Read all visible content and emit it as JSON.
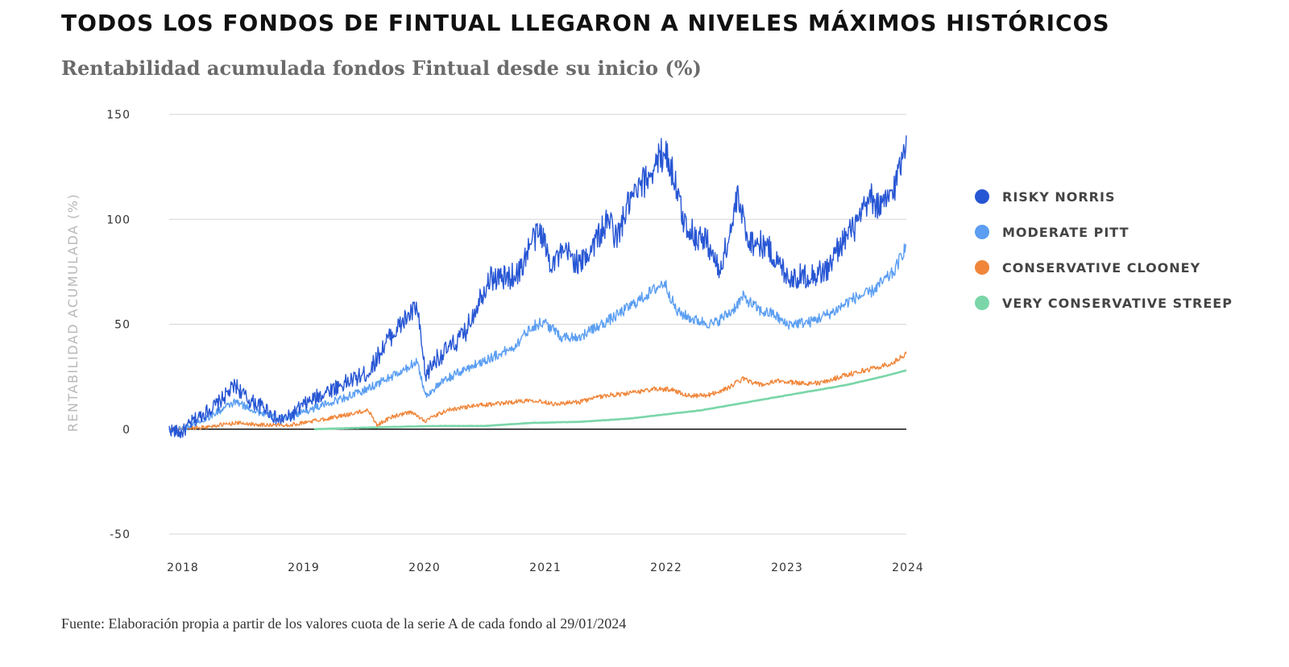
{
  "title": "TODOS LOS FONDOS DE FINTUAL LLEGARON A NIVELES MÁXIMOS HISTÓRICOS",
  "subtitle": "Rentabilidad acumulada fondos Fintual desde su inicio (%)",
  "source": "Fuente: Elaboración propia a partir de los valores cuota de la serie A de cada fondo al 29/01/2024",
  "chart_data": {
    "type": "line",
    "ylabel": "RENTABILIDAD ACUMULADA (%)",
    "xlabel": "",
    "ylim": [
      -50,
      150
    ],
    "xlim": [
      2018.0,
      2024.1
    ],
    "yticks": [
      150,
      100,
      50,
      0,
      -50
    ],
    "xticks": [
      {
        "label": "2018",
        "value": 2018.0
      },
      {
        "label": "2019",
        "value": 2019.0
      },
      {
        "label": "2020",
        "value": 2020.0
      },
      {
        "label": "2021",
        "value": 2021.0
      },
      {
        "label": "2022",
        "value": 2022.0
      },
      {
        "label": "2023",
        "value": 2023.0
      },
      {
        "label": "2024",
        "value": 2024.0
      }
    ],
    "legend_position": "right",
    "series": [
      {
        "name": "RISKY NORRIS",
        "color": "#2756d4",
        "points": [
          [
            2018.0,
            0
          ],
          [
            2018.1,
            -2
          ],
          [
            2018.2,
            4
          ],
          [
            2018.4,
            12
          ],
          [
            2018.55,
            21
          ],
          [
            2018.65,
            14
          ],
          [
            2018.8,
            10
          ],
          [
            2018.9,
            4
          ],
          [
            2019.0,
            6
          ],
          [
            2019.1,
            11
          ],
          [
            2019.3,
            18
          ],
          [
            2019.5,
            23
          ],
          [
            2019.65,
            27
          ],
          [
            2019.8,
            42
          ],
          [
            2019.95,
            52
          ],
          [
            2020.05,
            58
          ],
          [
            2020.12,
            25
          ],
          [
            2020.2,
            33
          ],
          [
            2020.35,
            40
          ],
          [
            2020.45,
            46
          ],
          [
            2020.55,
            60
          ],
          [
            2020.65,
            72
          ],
          [
            2020.8,
            72
          ],
          [
            2020.9,
            75
          ],
          [
            2021.0,
            90
          ],
          [
            2021.08,
            94
          ],
          [
            2021.15,
            80
          ],
          [
            2021.3,
            84
          ],
          [
            2021.4,
            78
          ],
          [
            2021.55,
            92
          ],
          [
            2021.65,
            100
          ],
          [
            2021.7,
            90
          ],
          [
            2021.8,
            107
          ],
          [
            2021.9,
            115
          ],
          [
            2022.0,
            124
          ],
          [
            2022.1,
            133
          ],
          [
            2022.18,
            120
          ],
          [
            2022.25,
            100
          ],
          [
            2022.35,
            92
          ],
          [
            2022.45,
            90
          ],
          [
            2022.55,
            75
          ],
          [
            2022.65,
            95
          ],
          [
            2022.7,
            110
          ],
          [
            2022.8,
            90
          ],
          [
            2022.95,
            87
          ],
          [
            2023.05,
            78
          ],
          [
            2023.15,
            72
          ],
          [
            2023.35,
            74
          ],
          [
            2023.45,
            76
          ],
          [
            2023.55,
            88
          ],
          [
            2023.7,
            98
          ],
          [
            2023.8,
            110
          ],
          [
            2023.9,
            105
          ],
          [
            2024.0,
            115
          ],
          [
            2024.05,
            126
          ],
          [
            2024.1,
            140
          ]
        ]
      },
      {
        "name": "MODERATE PITT",
        "color": "#5b9ef2",
        "points": [
          [
            2018.0,
            0
          ],
          [
            2018.1,
            0
          ],
          [
            2018.3,
            5
          ],
          [
            2018.55,
            13
          ],
          [
            2018.7,
            9
          ],
          [
            2018.9,
            5
          ],
          [
            2019.0,
            6
          ],
          [
            2019.3,
            12
          ],
          [
            2019.6,
            18
          ],
          [
            2019.8,
            24
          ],
          [
            2019.95,
            28
          ],
          [
            2020.05,
            33
          ],
          [
            2020.12,
            16
          ],
          [
            2020.3,
            24
          ],
          [
            2020.5,
            30
          ],
          [
            2020.7,
            35
          ],
          [
            2020.85,
            39
          ],
          [
            2021.0,
            49
          ],
          [
            2021.1,
            51
          ],
          [
            2021.25,
            44
          ],
          [
            2021.4,
            44
          ],
          [
            2021.55,
            49
          ],
          [
            2021.7,
            54
          ],
          [
            2021.85,
            60
          ],
          [
            2022.0,
            66
          ],
          [
            2022.1,
            70
          ],
          [
            2022.2,
            56
          ],
          [
            2022.35,
            52
          ],
          [
            2022.5,
            50
          ],
          [
            2022.65,
            56
          ],
          [
            2022.75,
            63
          ],
          [
            2022.9,
            56
          ],
          [
            2023.0,
            55
          ],
          [
            2023.1,
            50
          ],
          [
            2023.3,
            51
          ],
          [
            2023.5,
            56
          ],
          [
            2023.65,
            62
          ],
          [
            2023.8,
            65
          ],
          [
            2023.9,
            70
          ],
          [
            2024.0,
            75
          ],
          [
            2024.1,
            88
          ]
        ]
      },
      {
        "name": "CONSERVATIVE CLOONEY",
        "color": "#f0863a",
        "points": [
          [
            2018.0,
            0
          ],
          [
            2018.3,
            1
          ],
          [
            2018.55,
            3
          ],
          [
            2018.8,
            2
          ],
          [
            2019.0,
            2
          ],
          [
            2019.2,
            4
          ],
          [
            2019.4,
            6
          ],
          [
            2019.65,
            9
          ],
          [
            2019.72,
            2
          ],
          [
            2019.85,
            6
          ],
          [
            2020.0,
            8
          ],
          [
            2020.12,
            4
          ],
          [
            2020.3,
            9
          ],
          [
            2020.5,
            11
          ],
          [
            2020.7,
            12
          ],
          [
            2020.85,
            13
          ],
          [
            2021.0,
            14
          ],
          [
            2021.2,
            12
          ],
          [
            2021.4,
            13
          ],
          [
            2021.6,
            16
          ],
          [
            2021.8,
            17
          ],
          [
            2022.0,
            19
          ],
          [
            2022.15,
            19
          ],
          [
            2022.3,
            16
          ],
          [
            2022.45,
            16
          ],
          [
            2022.6,
            19
          ],
          [
            2022.75,
            24
          ],
          [
            2022.9,
            21
          ],
          [
            2023.05,
            23
          ],
          [
            2023.2,
            22
          ],
          [
            2023.4,
            22
          ],
          [
            2023.55,
            25
          ],
          [
            2023.75,
            28
          ],
          [
            2023.9,
            30
          ],
          [
            2024.0,
            32
          ],
          [
            2024.1,
            36
          ]
        ]
      },
      {
        "name": "VERY CONSERVATIVE STREEP",
        "color": "#7ad6a8",
        "points": [
          [
            2019.2,
            0
          ],
          [
            2019.5,
            0.5
          ],
          [
            2019.8,
            1
          ],
          [
            2020.2,
            1.5
          ],
          [
            2020.6,
            1.5
          ],
          [
            2021.0,
            3
          ],
          [
            2021.4,
            3.5
          ],
          [
            2021.8,
            5
          ],
          [
            2022.1,
            7
          ],
          [
            2022.4,
            9
          ],
          [
            2022.7,
            12
          ],
          [
            2023.0,
            15
          ],
          [
            2023.3,
            18
          ],
          [
            2023.6,
            21
          ],
          [
            2023.9,
            25
          ],
          [
            2024.1,
            28
          ]
        ]
      }
    ]
  }
}
